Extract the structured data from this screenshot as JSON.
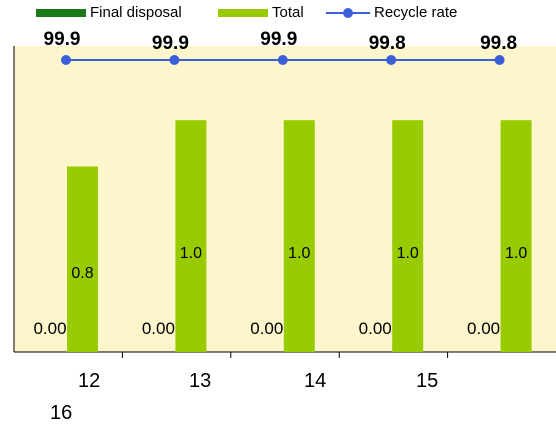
{
  "chart_data": {
    "type": "bar",
    "categories": [
      "12",
      "13",
      "14",
      "15",
      "16"
    ],
    "series": [
      {
        "name": "Final disposal",
        "values": [
          0.0,
          0.0,
          0.0,
          0.0,
          0.0
        ],
        "labels": [
          "0.00",
          "0.00",
          "0.00",
          "0.00",
          "0.00"
        ]
      },
      {
        "name": "Total",
        "values": [
          0.8,
          1.0,
          1.0,
          1.0,
          1.0
        ],
        "labels": [
          "0.8",
          "1.0",
          "1.0",
          "1.0",
          "1.0"
        ]
      },
      {
        "name": "Recycle rate",
        "values": [
          99.9,
          99.9,
          99.9,
          99.8,
          99.8
        ],
        "labels": [
          "99.9",
          "99.9",
          "99.9",
          "99.8",
          "99.8"
        ]
      }
    ],
    "ylim": [
      0,
      1.32
    ],
    "colors": {
      "final_disposal": "#1a7a1a",
      "total": "#99cc00",
      "recycle_rate": "#3a5fd9",
      "plot_bg": "#fdf5cc"
    }
  }
}
